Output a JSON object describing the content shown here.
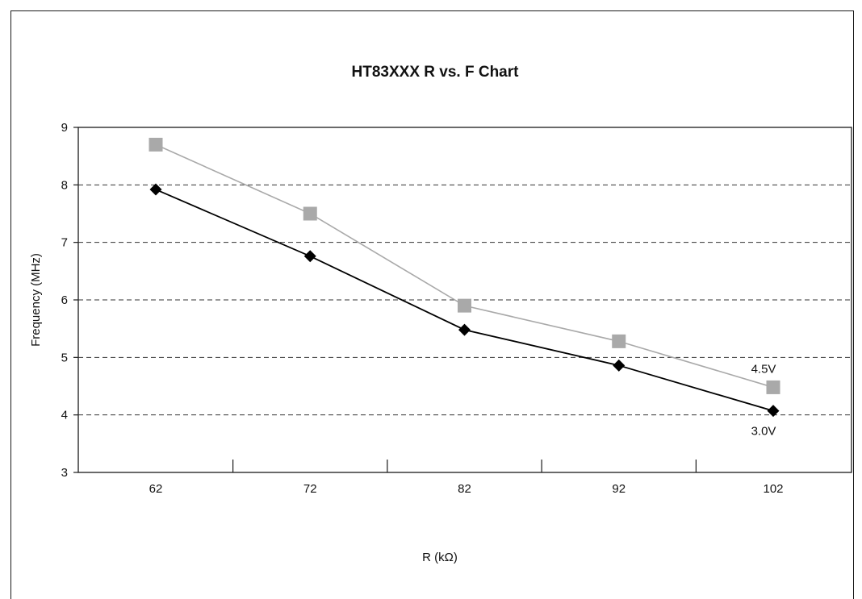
{
  "chart_data": {
    "type": "line",
    "title": "HT83XXX R vs. F Chart",
    "xlabel": "R (kΩ)",
    "ylabel": "Frequency (MHz)",
    "categories": [
      "62",
      "72",
      "82",
      "92",
      "102"
    ],
    "x": [
      62,
      72,
      82,
      92,
      102
    ],
    "ylim": [
      3,
      9
    ],
    "yticks": [
      "3",
      "4",
      "5",
      "6",
      "7",
      "8",
      "9"
    ],
    "grid": "horizontal dashed",
    "legend": "none",
    "series": [
      {
        "name": "4.5V",
        "values": [
          8.7,
          7.5,
          5.9,
          5.28,
          4.48
        ],
        "color": "#a9a9a9",
        "marker": "square"
      },
      {
        "name": "3.0V",
        "values": [
          7.92,
          6.76,
          5.48,
          4.86,
          4.07
        ],
        "color": "#000000",
        "marker": "diamond"
      }
    ]
  }
}
